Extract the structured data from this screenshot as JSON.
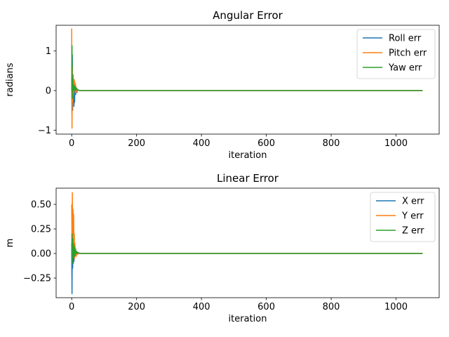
{
  "chart_data": [
    {
      "type": "line",
      "title": "Angular Error",
      "xlabel": "iteration",
      "ylabel": "radians",
      "xlim": [
        -48,
        1133
      ],
      "ylim": [
        -1.1,
        1.65
      ],
      "xticks": [
        0,
        200,
        400,
        600,
        800,
        1000
      ],
      "xtick_labels": [
        "0",
        "200",
        "400",
        "600",
        "800",
        "1000"
      ],
      "yticks": [
        -1,
        0,
        1
      ],
      "ytick_labels": [
        "−1",
        "0",
        "1"
      ],
      "grid": false,
      "legend_position": "top-right",
      "series": [
        {
          "name": "Roll err",
          "color": "#1f77b4",
          "x": [
            0,
            1,
            2,
            3,
            4,
            5,
            6,
            7,
            8,
            9,
            10,
            12,
            14,
            16,
            18,
            20,
            25,
            30,
            1082
          ],
          "y": [
            0.3,
            -0.6,
            0.9,
            -0.5,
            0.4,
            -0.3,
            0.2,
            -0.4,
            0.1,
            -0.3,
            0.15,
            -0.1,
            0.08,
            -0.05,
            0.03,
            0.02,
            0.0,
            0.0,
            0.0
          ]
        },
        {
          "name": "Pitch err",
          "color": "#ff7f0e",
          "x": [
            0,
            1,
            2,
            3,
            4,
            5,
            6,
            7,
            8,
            9,
            10,
            11,
            12,
            14,
            16,
            18,
            20,
            25,
            30,
            1082
          ],
          "y": [
            1.57,
            -0.95,
            0.6,
            -0.3,
            0.2,
            -0.1,
            0.25,
            0.05,
            0.28,
            0.1,
            0.2,
            -0.05,
            0.15,
            -0.05,
            0.05,
            0.02,
            0.01,
            0.0,
            0.0,
            0.0
          ]
        },
        {
          "name": "Yaw err",
          "color": "#2ca02c",
          "x": [
            0,
            1,
            2,
            3,
            4,
            5,
            6,
            7,
            8,
            9,
            10,
            11,
            12,
            14,
            16,
            18,
            20,
            25,
            30,
            1082
          ],
          "y": [
            0.0,
            1.13,
            -0.2,
            0.3,
            0.0,
            0.15,
            0.05,
            0.1,
            0.0,
            0.12,
            0.05,
            0.08,
            0.0,
            0.06,
            0.04,
            0.02,
            0.01,
            0.0,
            0.0,
            0.0
          ]
        }
      ]
    },
    {
      "type": "line",
      "title": "Linear Error",
      "xlabel": "iteration",
      "ylabel": "m",
      "xlim": [
        -48,
        1133
      ],
      "ylim": [
        -0.45,
        0.665
      ],
      "xticks": [
        0,
        200,
        400,
        600,
        800,
        1000
      ],
      "xtick_labels": [
        "0",
        "200",
        "400",
        "600",
        "800",
        "1000"
      ],
      "yticks": [
        -0.25,
        0,
        0.25,
        0.5
      ],
      "ytick_labels": [
        "−0.25",
        "0.00",
        "0.25",
        "0.50"
      ],
      "grid": false,
      "legend_position": "top-right",
      "series": [
        {
          "name": "X err",
          "color": "#1f77b4",
          "x": [
            0,
            1,
            2,
            3,
            4,
            5,
            6,
            7,
            8,
            9,
            10,
            12,
            14,
            16,
            18,
            20,
            25,
            30,
            1082
          ],
          "y": [
            0.1,
            -0.41,
            0.2,
            -0.15,
            0.1,
            -0.1,
            0.05,
            -0.08,
            0.03,
            -0.05,
            0.02,
            -0.02,
            0.01,
            0.0,
            0.0,
            0.0,
            0.0,
            0.0,
            0.0
          ]
        },
        {
          "name": "Y err",
          "color": "#ff7f0e",
          "x": [
            0,
            1,
            2,
            3,
            4,
            5,
            6,
            7,
            8,
            9,
            10,
            11,
            12,
            14,
            16,
            18,
            20,
            25,
            30,
            1082
          ],
          "y": [
            0.5,
            0.05,
            0.62,
            0.1,
            0.45,
            0.3,
            0.4,
            0.0,
            0.2,
            -0.05,
            0.1,
            0.0,
            0.05,
            -0.03,
            0.02,
            -0.01,
            0.0,
            0.0,
            0.0,
            0.0
          ]
        },
        {
          "name": "Z err",
          "color": "#2ca02c",
          "x": [
            0,
            1,
            2,
            3,
            4,
            5,
            6,
            7,
            8,
            9,
            10,
            12,
            14,
            16,
            18,
            20,
            25,
            30,
            1082
          ],
          "y": [
            0.0,
            0.2,
            -0.1,
            0.15,
            -0.05,
            0.1,
            0.0,
            0.08,
            -0.03,
            0.06,
            -0.02,
            0.04,
            0.0,
            0.02,
            0.0,
            0.01,
            0.0,
            0.0,
            0.0
          ]
        }
      ]
    }
  ]
}
